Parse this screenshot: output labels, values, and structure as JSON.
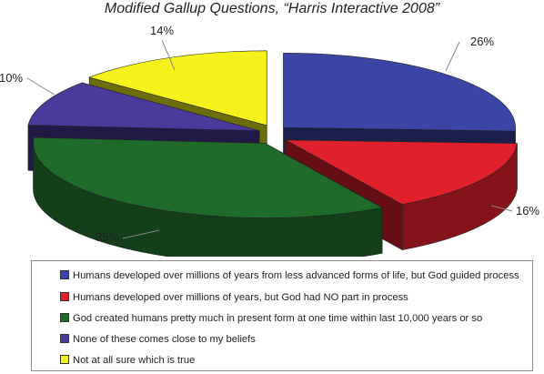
{
  "chart_data": {
    "type": "pie",
    "title": "Modified Gallup Questions, “Harris Interactive 2008”",
    "slices": [
      {
        "label": "Humans developed over millions of years from less advanced forms of life, but God guided process",
        "value": 26,
        "value_label": "26%",
        "color": "#3a45a6"
      },
      {
        "label": "Humans developed over millions of years, but God had NO part in process",
        "value": 16,
        "value_label": "16%",
        "color": "#e0202a"
      },
      {
        "label": "God created humans pretty much in present form at one time within last 10,000 years or so",
        "value": 35,
        "value_label": "35%",
        "color": "#1f6b2a"
      },
      {
        "label": "None of these comes close to my beliefs",
        "value": 10,
        "value_label": "10%",
        "color": "#4a3a9c"
      },
      {
        "label": "Not at all sure which is true",
        "value": 14,
        "value_label": "14%",
        "color": "#f4f21a"
      }
    ],
    "exploded": true,
    "three_d": true,
    "legend_position": "bottom"
  }
}
